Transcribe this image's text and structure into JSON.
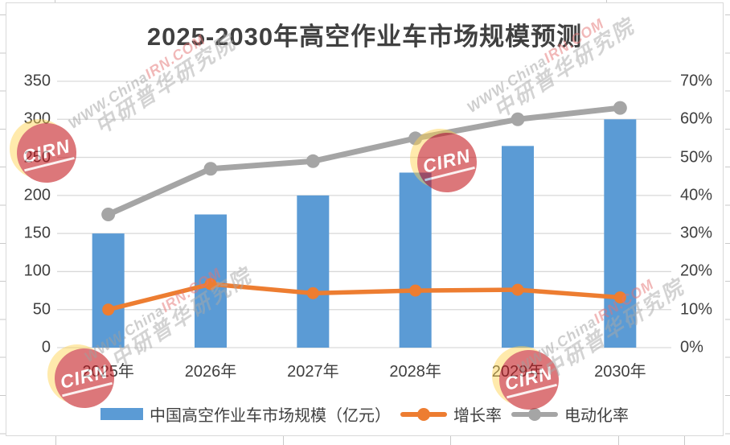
{
  "title": "2025-2030年高空作业车市场规模预测",
  "watermark": {
    "logo_text": "CIRN",
    "line1_gray": "WWW.China",
    "line1_red": "IRN.COM",
    "line2": "中研普华研究院"
  },
  "chart_data": {
    "type": "bar",
    "subtype": "combo-bar-line",
    "title": "2025-2030年高空作业车市场规模预测",
    "categories": [
      "2025年",
      "2026年",
      "2027年",
      "2028年",
      "2029年",
      "2030年"
    ],
    "series": [
      {
        "name": "中国高空作业车市场规模（亿元）",
        "type": "bar",
        "axis": "left",
        "color": "#5B9BD5",
        "values": [
          150,
          175,
          200,
          230,
          265,
          300
        ]
      },
      {
        "name": "增长率",
        "type": "line",
        "axis": "right",
        "color": "#ED7D31",
        "values": [
          10,
          16.7,
          14.3,
          15,
          15.2,
          13.2
        ]
      },
      {
        "name": "电动化率",
        "type": "line",
        "axis": "right",
        "color": "#A5A5A5",
        "values": [
          35,
          47,
          49,
          55,
          60,
          63
        ]
      }
    ],
    "left_axis": {
      "min": 0,
      "max": 350,
      "step": 50,
      "ticks": [
        "0",
        "50",
        "100",
        "150",
        "200",
        "250",
        "300",
        "350"
      ]
    },
    "right_axis": {
      "min": 0,
      "max": 70,
      "step": 10,
      "unit": "%",
      "ticks": [
        "0%",
        "10%",
        "20%",
        "30%",
        "40%",
        "50%",
        "60%",
        "70%"
      ]
    },
    "grid": true,
    "gridline_color": "#d9d9d9",
    "legend_position": "bottom"
  }
}
